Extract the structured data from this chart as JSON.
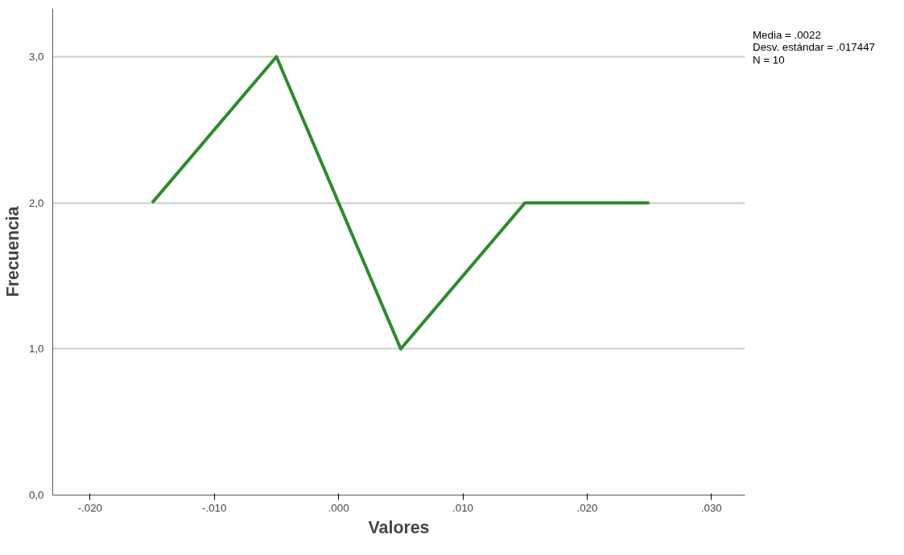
{
  "chart_data": {
    "type": "line",
    "xlabel": "Valores",
    "ylabel": "Frecuencia",
    "x": [
      -0.015,
      -0.005,
      0.005,
      0.015,
      0.025
    ],
    "series": [
      {
        "color": "#2e8b2e",
        "values": [
          2,
          3,
          1,
          2,
          2
        ]
      }
    ],
    "xlim": [
      -0.023,
      0.0327
    ],
    "ylim": [
      0,
      3.33
    ],
    "xticks": [
      {
        "value": -0.02,
        "label": "-.020"
      },
      {
        "value": -0.01,
        "label": "-.010"
      },
      {
        "value": 0,
        "label": ".000"
      },
      {
        "value": 0.01,
        "label": ".010"
      },
      {
        "value": 0.02,
        "label": ".020"
      },
      {
        "value": 0.03,
        "label": ".030"
      }
    ],
    "yticks": [
      {
        "value": 0,
        "label": "0,0"
      },
      {
        "value": 1,
        "label": "1,0"
      },
      {
        "value": 2,
        "label": "2,0"
      },
      {
        "value": 3,
        "label": "3,0"
      }
    ],
    "grid": "y",
    "marker": "none",
    "line_style": "solid",
    "annotations": [
      "Media = .0022",
      "Desv. estándar = .017447",
      "N = 10"
    ]
  }
}
